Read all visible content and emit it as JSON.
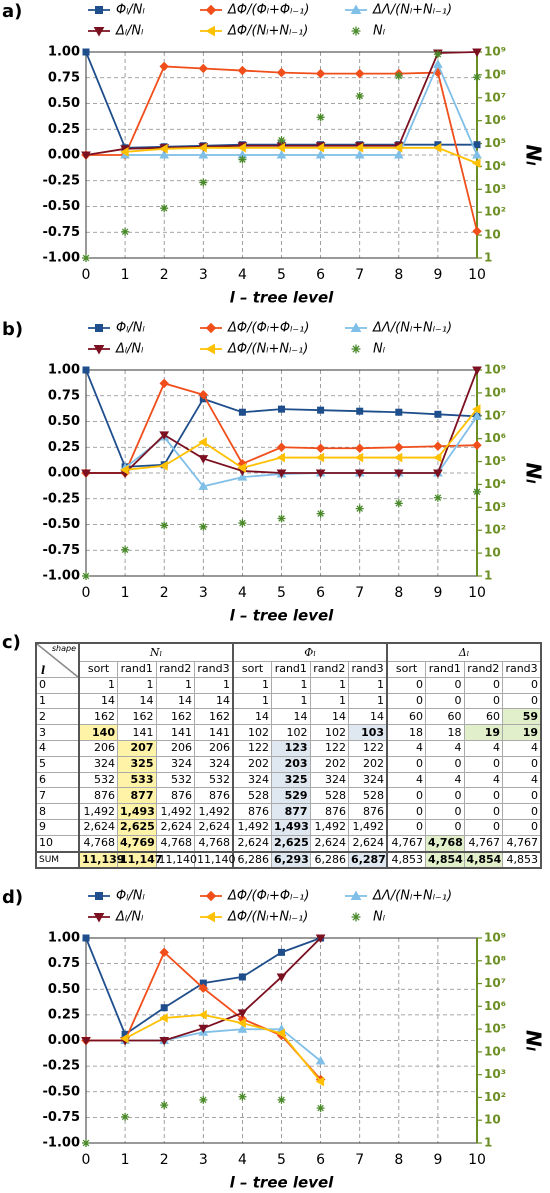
{
  "chart_data": [
    {
      "type": "line",
      "panel": "a)",
      "xlabel": "l – tree level",
      "y2label": "Nₗ",
      "x": [
        0,
        1,
        2,
        3,
        4,
        5,
        6,
        7,
        8,
        9,
        10
      ],
      "xlim": [
        0,
        10
      ],
      "xticks": [
        0,
        1,
        2,
        3,
        4,
        5,
        6,
        7,
        8,
        9,
        10
      ],
      "ylim": [
        -1,
        1
      ],
      "yticks": [
        {
          "value": 1,
          "label": "1.00"
        },
        {
          "value": 0.75,
          "label": "0.75"
        },
        {
          "value": 0.5,
          "label": "0.50"
        },
        {
          "value": 0.25,
          "label": "0.25"
        },
        {
          "value": 0,
          "label": "0.00"
        },
        {
          "value": -0.25,
          "label": "-0.25"
        },
        {
          "value": -0.5,
          "label": "-0.50"
        },
        {
          "value": -0.75,
          "label": "-0.75"
        },
        {
          "value": -1,
          "label": "-1.00"
        }
      ],
      "y2lim": [
        1,
        1000000000
      ],
      "y2log": true,
      "y2ticks": [
        1,
        10,
        {
          "value": 100,
          "label": "10²"
        },
        {
          "value": 1000,
          "label": "10³"
        },
        {
          "value": 10000,
          "label": "10⁴"
        },
        {
          "value": 100000,
          "label": "10⁵"
        },
        {
          "value": 1000000,
          "label": "10⁶"
        },
        {
          "value": 10000000,
          "label": "10⁷"
        },
        {
          "value": 100000000,
          "label": "10⁸"
        },
        {
          "value": 1000000000,
          "label": "10⁹"
        }
      ],
      "grid": true,
      "series": [
        {
          "name": "Φₗ/Nₗ",
          "color": "#1f4e8c",
          "marker": "square",
          "values": [
            1,
            0.07,
            0.08,
            0.09,
            0.1,
            0.1,
            0.1,
            0.1,
            0.1,
            0.1,
            0.1
          ]
        },
        {
          "name": "ΔΦ/(Φₗ+Φₗ₋₁)",
          "color": "#f04e1a",
          "marker": "diamond",
          "values": [
            0,
            0,
            0.86,
            0.84,
            0.82,
            0.8,
            0.79,
            0.79,
            0.79,
            0.8,
            -0.74
          ]
        },
        {
          "name": "ΔΛ/(Nₗ+Nₗ₋₁)",
          "color": "#7fbfe8",
          "marker": "triangle-up",
          "values": [
            null,
            0,
            0,
            0,
            0,
            0,
            0,
            0,
            0,
            0.88,
            0
          ]
        },
        {
          "name": "Δₗ/Nₗ",
          "color": "#7b1020",
          "marker": "triangle-down",
          "values": [
            0,
            0.06,
            0.07,
            0.08,
            0.09,
            0.09,
            0.09,
            0.09,
            0.09,
            0.99,
            1.0
          ]
        },
        {
          "name": "ΔΦ/(Nₗ+Nₗ₋₁)",
          "color": "#ffc000",
          "marker": "triangle-left",
          "values": [
            null,
            0.03,
            0.06,
            0.07,
            0.07,
            0.07,
            0.07,
            0.07,
            0.07,
            0.07,
            -0.08
          ]
        },
        {
          "name": "Nₗ",
          "color": "#4a8a2a",
          "marker": "star",
          "mode": "markers",
          "axis": "y2",
          "values": [
            1,
            14,
            150,
            2000,
            20000,
            140000,
            1400000,
            12000000,
            90000000,
            800000000,
            80000000
          ]
        }
      ]
    },
    {
      "type": "line",
      "panel": "b)",
      "xlabel": "l – tree level",
      "y2label": "Nₗ",
      "x": [
        0,
        1,
        2,
        3,
        4,
        5,
        6,
        7,
        8,
        9,
        10
      ],
      "xlim": [
        0,
        10
      ],
      "xticks": [
        0,
        1,
        2,
        3,
        4,
        5,
        6,
        7,
        8,
        9,
        10
      ],
      "ylim": [
        -1,
        1
      ],
      "yticks": [
        {
          "value": 1,
          "label": "1.00"
        },
        {
          "value": 0.75,
          "label": "0.75"
        },
        {
          "value": 0.5,
          "label": "0.50"
        },
        {
          "value": 0.25,
          "label": "0.25"
        },
        {
          "value": 0,
          "label": "0.00"
        },
        {
          "value": -0.25,
          "label": "-0.25"
        },
        {
          "value": -0.5,
          "label": "-0.50"
        },
        {
          "value": -0.75,
          "label": "-0.75"
        },
        {
          "value": -1,
          "label": "-1.00"
        }
      ],
      "y2lim": [
        1,
        1000000000
      ],
      "y2log": true,
      "y2ticks": [
        1,
        10,
        {
          "value": 100,
          "label": "10²"
        },
        {
          "value": 1000,
          "label": "10³"
        },
        {
          "value": 10000,
          "label": "10⁴"
        },
        {
          "value": 100000,
          "label": "10⁵"
        },
        {
          "value": 1000000,
          "label": "10⁶"
        },
        {
          "value": 10000000,
          "label": "10⁷"
        },
        {
          "value": 100000000,
          "label": "10⁸"
        },
        {
          "value": 1000000000,
          "label": "10⁹"
        }
      ],
      "grid": true,
      "series": [
        {
          "name": "Φₗ/Nₗ",
          "color": "#1f4e8c",
          "marker": "square",
          "values": [
            1,
            0.06,
            0.08,
            0.72,
            0.59,
            0.62,
            0.61,
            0.6,
            0.59,
            0.57,
            0.55
          ]
        },
        {
          "name": "ΔΦ/(Φₗ+Φₗ₋₁)",
          "color": "#f04e1a",
          "marker": "diamond",
          "values": [
            0,
            0,
            0.87,
            0.76,
            0.09,
            0.25,
            0.24,
            0.24,
            0.25,
            0.26,
            0.27
          ]
        },
        {
          "name": "ΔΛ/(Nₗ+Nₗ₋₁)",
          "color": "#7fbfe8",
          "marker": "triangle-up",
          "values": [
            null,
            0.05,
            0.35,
            -0.13,
            -0.04,
            -0.01,
            0,
            0,
            0,
            0,
            0.55
          ]
        },
        {
          "name": "Δₗ/Nₗ",
          "color": "#7b1020",
          "marker": "triangle-down",
          "values": [
            0,
            0,
            0.37,
            0.14,
            0.02,
            0,
            0,
            0,
            0,
            0,
            1.0
          ]
        },
        {
          "name": "ΔΦ/(Nₗ+Nₗ₋₁)",
          "color": "#ffc000",
          "marker": "triangle-left",
          "values": [
            null,
            0.03,
            0.07,
            0.3,
            0.05,
            0.15,
            0.15,
            0.15,
            0.15,
            0.15,
            0.62
          ]
        },
        {
          "name": "Nₗ",
          "color": "#4a8a2a",
          "marker": "star",
          "mode": "markers",
          "axis": "y2",
          "values": [
            1,
            14,
            162,
            141,
            206,
            324,
            532,
            876,
            1492,
            2624,
            4768
          ]
        }
      ]
    },
    {
      "type": "line",
      "panel": "d)",
      "xlabel": "l – tree level",
      "y2label": "Nₗ",
      "x": [
        0,
        1,
        2,
        3,
        4,
        5,
        6
      ],
      "xlim": [
        0,
        10
      ],
      "xticks": [
        0,
        1,
        2,
        3,
        4,
        5,
        6,
        7,
        8,
        9,
        10
      ],
      "ylim": [
        -1,
        1
      ],
      "yticks": [
        {
          "value": 1,
          "label": "1.00"
        },
        {
          "value": 0.75,
          "label": "0.75"
        },
        {
          "value": 0.5,
          "label": "0.50"
        },
        {
          "value": 0.25,
          "label": "0.25"
        },
        {
          "value": 0,
          "label": "0.00"
        },
        {
          "value": -0.25,
          "label": "-0.25"
        },
        {
          "value": -0.5,
          "label": "-0.50"
        },
        {
          "value": -0.75,
          "label": "-0.75"
        },
        {
          "value": -1,
          "label": "-1.00"
        }
      ],
      "y2lim": [
        1,
        1000000000
      ],
      "y2log": true,
      "y2ticks": [
        1,
        10,
        {
          "value": 100,
          "label": "10²"
        },
        {
          "value": 1000,
          "label": "10³"
        },
        {
          "value": 10000,
          "label": "10⁴"
        },
        {
          "value": 100000,
          "label": "10⁵"
        },
        {
          "value": 1000000,
          "label": "10⁶"
        },
        {
          "value": 10000000,
          "label": "10⁷"
        },
        {
          "value": 100000000,
          "label": "10⁸"
        },
        {
          "value": 1000000000,
          "label": "10⁹"
        }
      ],
      "grid": true,
      "series": [
        {
          "name": "Φₗ/Nₗ",
          "color": "#1f4e8c",
          "marker": "square",
          "values": [
            1,
            0.06,
            0.32,
            0.56,
            0.62,
            0.86,
            1.0
          ]
        },
        {
          "name": "ΔΦ/(Φₗ+Φₗ₋₁)",
          "color": "#f04e1a",
          "marker": "diamond",
          "values": [
            0,
            0,
            0.86,
            0.51,
            0.21,
            0.05,
            -0.38
          ]
        },
        {
          "name": "ΔΛ/(Nₗ+Nₗ₋₁)",
          "color": "#7fbfe8",
          "marker": "triangle-up",
          "values": [
            null,
            0,
            0,
            0.08,
            0.11,
            0.11,
            -0.2
          ]
        },
        {
          "name": "Δₗ/Nₗ",
          "color": "#7b1020",
          "marker": "triangle-down",
          "values": [
            0,
            0,
            0,
            0.12,
            0.27,
            0.62,
            1.0
          ]
        },
        {
          "name": "ΔΦ/(Nₗ+Nₗ₋₁)",
          "color": "#ffc000",
          "marker": "triangle-left",
          "values": [
            null,
            0.02,
            0.22,
            0.25,
            0.17,
            0.07,
            -0.4
          ]
        },
        {
          "name": "Nₗ",
          "color": "#4a8a2a",
          "marker": "star",
          "mode": "markers",
          "axis": "y2",
          "values": [
            1,
            14,
            46,
            78,
            107,
            78,
            34
          ]
        }
      ]
    }
  ],
  "table": {
    "panel": "c)",
    "corner_top": "shape",
    "corner_bottom": "l",
    "groups": [
      "Nₗ",
      "Φₗ",
      "Δₗ"
    ],
    "group_colors": [
      "#fff3a8",
      "#dfe7f1",
      "#e1efcb"
    ],
    "columns": [
      "sort",
      "rand1",
      "rand2",
      "rand3"
    ],
    "rows": [
      {
        "level": "0",
        "values": [
          "1",
          "1",
          "1",
          "1",
          "1",
          "1",
          "1",
          "1",
          "0",
          "0",
          "0",
          "0"
        ]
      },
      {
        "level": "1",
        "values": [
          "14",
          "14",
          "14",
          "14",
          "1",
          "1",
          "1",
          "1",
          "0",
          "0",
          "0",
          "0"
        ]
      },
      {
        "level": "2",
        "values": [
          "162",
          "162",
          "162",
          "162",
          "14",
          "14",
          "14",
          "14",
          "60",
          "60",
          "60",
          "59"
        ]
      },
      {
        "level": "3",
        "values": [
          "140",
          "141",
          "141",
          "141",
          "102",
          "102",
          "102",
          "103",
          "18",
          "18",
          "19",
          "19"
        ]
      },
      {
        "level": "4",
        "values": [
          "206",
          "207",
          "206",
          "206",
          "122",
          "123",
          "122",
          "122",
          "4",
          "4",
          "4",
          "4"
        ]
      },
      {
        "level": "5",
        "values": [
          "324",
          "325",
          "324",
          "324",
          "202",
          "203",
          "202",
          "202",
          "0",
          "0",
          "0",
          "0"
        ]
      },
      {
        "level": "6",
        "values": [
          "532",
          "533",
          "532",
          "532",
          "324",
          "325",
          "324",
          "324",
          "4",
          "4",
          "4",
          "4"
        ]
      },
      {
        "level": "7",
        "values": [
          "876",
          "877",
          "876",
          "876",
          "528",
          "529",
          "528",
          "528",
          "0",
          "0",
          "0",
          "0"
        ]
      },
      {
        "level": "8",
        "values": [
          "1,492",
          "1,493",
          "1,492",
          "1,492",
          "876",
          "877",
          "876",
          "876",
          "0",
          "0",
          "0",
          "0"
        ]
      },
      {
        "level": "9",
        "values": [
          "2,624",
          "2,625",
          "2,624",
          "2,624",
          "1,492",
          "1,493",
          "1,492",
          "1,492",
          "0",
          "0",
          "0",
          "0"
        ]
      },
      {
        "level": "10",
        "values": [
          "4,768",
          "4,769",
          "4,768",
          "4,768",
          "2,624",
          "2,625",
          "2,624",
          "2,624",
          "4,767",
          "4,768",
          "4,767",
          "4,767"
        ]
      },
      {
        "level": "SUM",
        "values": [
          "11,139",
          "11,147",
          "11,140",
          "11,140",
          "6,286",
          "6,293",
          "6,286",
          "6,287",
          "4,853",
          "4,854",
          "4,854",
          "4,853"
        ]
      }
    ],
    "bold": [
      [
        2,
        11
      ],
      [
        3,
        0
      ],
      [
        3,
        7
      ],
      [
        3,
        10
      ],
      [
        3,
        11
      ],
      [
        4,
        1
      ],
      [
        4,
        5
      ],
      [
        5,
        1
      ],
      [
        5,
        5
      ],
      [
        6,
        1
      ],
      [
        6,
        5
      ],
      [
        7,
        1
      ],
      [
        7,
        5
      ],
      [
        8,
        1
      ],
      [
        8,
        5
      ],
      [
        9,
        1
      ],
      [
        9,
        5
      ],
      [
        10,
        1
      ],
      [
        10,
        5
      ],
      [
        10,
        9
      ],
      [
        11,
        0
      ],
      [
        11,
        1
      ],
      [
        11,
        5
      ],
      [
        11,
        7
      ],
      [
        11,
        9
      ],
      [
        11,
        10
      ]
    ]
  }
}
